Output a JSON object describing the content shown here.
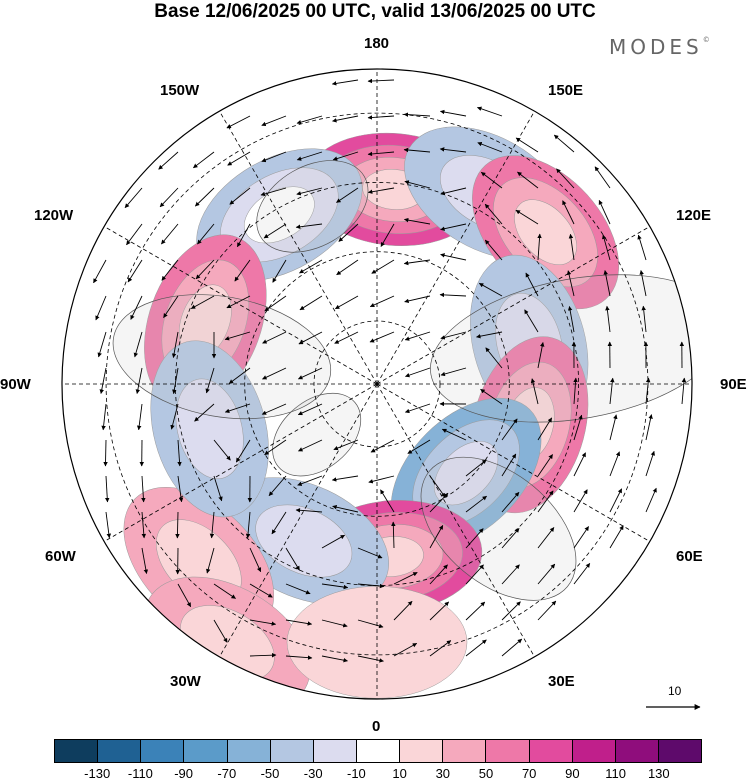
{
  "title": "Base 12/06/2025 00 UTC, valid 13/06/2025 00 UTC",
  "logo": {
    "text": "MODES",
    "mark": "©"
  },
  "map": {
    "projection": "north-polar-stereographic",
    "longitude_labels": [
      {
        "text": "180",
        "lon": 180
      },
      {
        "text": "150E",
        "lon": 150
      },
      {
        "text": "120E",
        "lon": 120
      },
      {
        "text": "90E",
        "lon": 90
      },
      {
        "text": "60E",
        "lon": 60
      },
      {
        "text": "30E",
        "lon": 30
      },
      {
        "text": "0",
        "lon": 0
      },
      {
        "text": "30W",
        "lon": -30
      },
      {
        "text": "60W",
        "lon": -60
      },
      {
        "text": "90W",
        "lon": -90
      },
      {
        "text": "120W",
        "lon": -120
      },
      {
        "text": "150W",
        "lon": -150
      }
    ],
    "vector_scale_label": "10",
    "anomalies": [
      {
        "lon": 175,
        "colat": 0.62,
        "value": 80
      },
      {
        "lon": -150,
        "colat": 0.62,
        "value": -50
      },
      {
        "lon": 150,
        "colat": 0.7,
        "value": -45
      },
      {
        "lon": 132,
        "colat": 0.72,
        "value": 55
      },
      {
        "lon": 105,
        "colat": 0.5,
        "value": -45
      },
      {
        "lon": 75,
        "colat": 0.5,
        "value": 60
      },
      {
        "lon": 45,
        "colat": 0.4,
        "value": -55
      },
      {
        "lon": 5,
        "colat": 0.55,
        "value": 75
      },
      {
        "lon": -25,
        "colat": 0.55,
        "value": -40
      },
      {
        "lon": -45,
        "colat": 0.8,
        "value": 40
      },
      {
        "lon": -110,
        "colat": 0.58,
        "value": 55
      },
      {
        "lon": -75,
        "colat": 0.55,
        "value": -40
      },
      {
        "lon": -30,
        "colat": 0.95,
        "value": 35
      },
      {
        "lon": 0,
        "colat": 0.82,
        "value": 20
      }
    ]
  },
  "colorbar": {
    "colors": [
      "#0e3d5e",
      "#1f6193",
      "#3b82b8",
      "#5b9bc9",
      "#86b2d7",
      "#b4c7e2",
      "#dcdcef",
      "#ffffff",
      "#fad6d8",
      "#f5a9bd",
      "#ee78a8",
      "#e24b9e",
      "#c01f8b",
      "#8f0d7c",
      "#5e0a6b"
    ],
    "tick_labels": [
      "-130",
      "-110",
      "-90",
      "-70",
      "-50",
      "-30",
      "-10",
      "10",
      "30",
      "50",
      "70",
      "90",
      "110",
      "130"
    ]
  }
}
